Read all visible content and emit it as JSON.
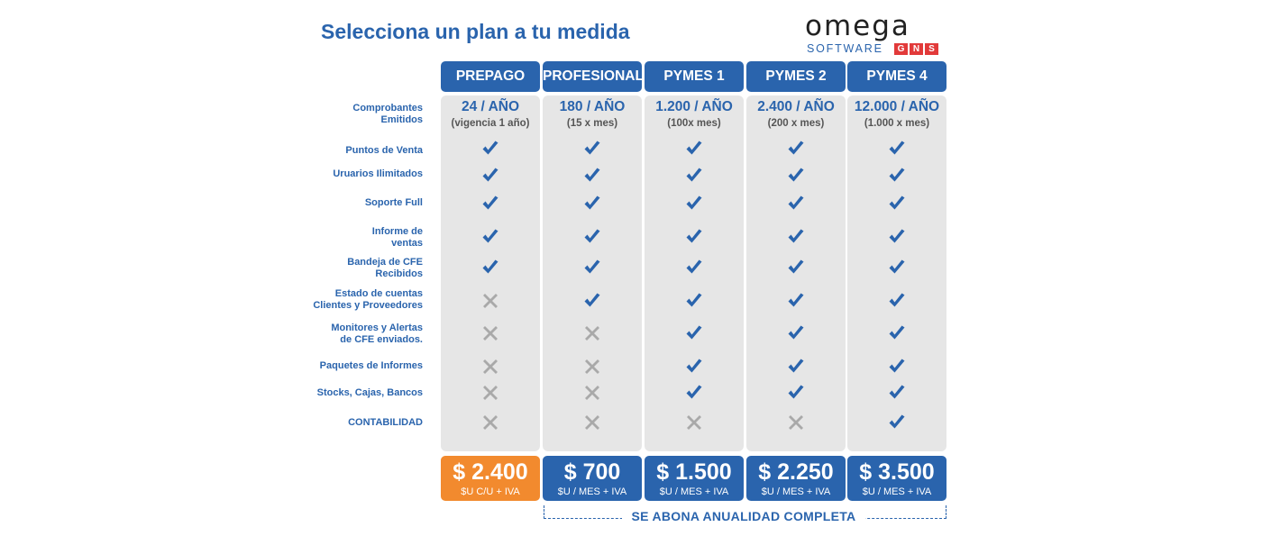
{
  "title": "Selecciona un plan a tu medida",
  "logo": {
    "name": "omega",
    "software": "SOFTWARE",
    "gns": [
      "G",
      "N",
      "S"
    ]
  },
  "features": [
    "Comprobantes\nEmitidos",
    "Puntos de Venta",
    "Uruarios Ilimitados",
    "Soporte Full",
    "Informe de\nventas",
    "Bandeja de CFE\nRecibidos",
    "Estado de cuentas\nClientes y Proveedores",
    "Monitores y Alertas\nde CFE enviados.",
    "Paquetes de Informes",
    "Stocks, Cajas, Bancos",
    "CONTABILIDAD"
  ],
  "plans": [
    {
      "name": "PREPAGO",
      "qty": "24 / AÑO",
      "qty_sub": "(vigencia 1 año)",
      "price": "$ 2.400",
      "price_unit": "$U C/U + IVA",
      "price_color": "#f28a2e",
      "marks": [
        true,
        true,
        true,
        true,
        true,
        false,
        false,
        false,
        false,
        false
      ]
    },
    {
      "name": "PROFESIONAL",
      "qty": "180 / AÑO",
      "qty_sub": "(15 x mes)",
      "price": "$ 700",
      "price_unit": "$U / MES + IVA",
      "price_color": "#2a64ad",
      "marks": [
        true,
        true,
        true,
        true,
        true,
        true,
        false,
        false,
        false,
        false
      ]
    },
    {
      "name": "PYMES 1",
      "qty": "1.200 / AÑO",
      "qty_sub": "(100x mes)",
      "price": "$ 1.500",
      "price_unit": "$U / MES + IVA",
      "price_color": "#2a64ad",
      "marks": [
        true,
        true,
        true,
        true,
        true,
        true,
        true,
        true,
        true,
        false
      ]
    },
    {
      "name": "PYMES 2",
      "qty": "2.400 / AÑO",
      "qty_sub": "(200 x mes)",
      "price": "$ 2.250",
      "price_unit": "$U / MES + IVA",
      "price_color": "#2a64ad",
      "marks": [
        true,
        true,
        true,
        true,
        true,
        true,
        true,
        true,
        true,
        false
      ]
    },
    {
      "name": "PYMES 4",
      "qty": "12.000 / AÑO",
      "qty_sub": "(1.000 x mes)",
      "price": "$ 3.500",
      "price_unit": "$U / MES + IVA",
      "price_color": "#2a64ad",
      "marks": [
        true,
        true,
        true,
        true,
        true,
        true,
        true,
        true,
        true,
        true
      ]
    }
  ],
  "annual_note": "SE ABONA ANUALIDAD COMPLETA",
  "colors": {
    "accent": "#2a64ad",
    "cross": "#a9a9a9",
    "prepago": "#f28a2e",
    "column_bg": "#e6e6e6"
  },
  "icons": {
    "check": "check-icon",
    "cross": "cross-icon"
  }
}
